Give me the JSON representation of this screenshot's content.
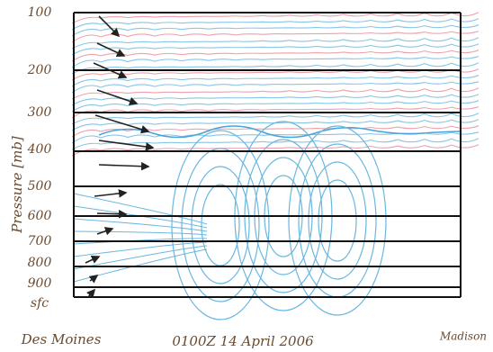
{
  "title": "0100Z 14 April 2006",
  "y_axis_label": "Pressure [mb]",
  "left_station": "Des Moines",
  "right_station": "Madison",
  "levels": [
    "100",
    "200",
    "300",
    "400",
    "500",
    "600",
    "700",
    "800",
    "900",
    "sfc"
  ]
}
